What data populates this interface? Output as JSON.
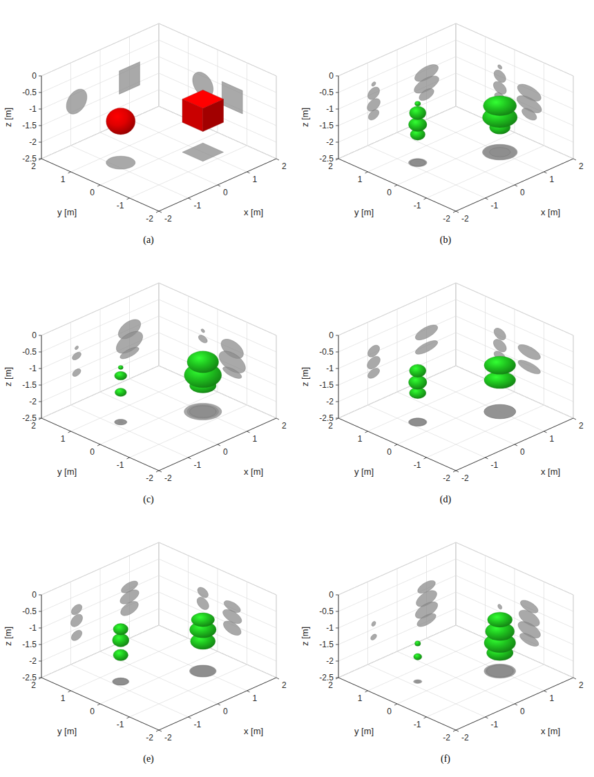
{
  "chart_data": [
    {
      "type": "isosurface",
      "title": "(a)",
      "xlabel": "x [m]",
      "ylabel": "y [m]",
      "zlabel": "z [m]",
      "xlim": [
        -2,
        2
      ],
      "ylim": [
        -2,
        2
      ],
      "zlim": [
        -2.5,
        0
      ],
      "xticks": [
        -2,
        -1,
        0,
        1,
        2
      ],
      "yticks": [
        -2,
        -1,
        0,
        1,
        2
      ],
      "zticks": [
        -2.5,
        -2,
        -1.5,
        -1,
        -0.5,
        0
      ],
      "grid": true,
      "series": [
        {
          "marker": "sphere",
          "color": "#e00000",
          "x": [
            -0.8
          ],
          "y": [
            0.5
          ],
          "z": [
            -1.25
          ],
          "rx": [
            0.35
          ],
          "ry": [
            0.35
          ],
          "rz": [
            0.35
          ]
        },
        {
          "marker": "cube",
          "color": "#e00000",
          "x": [
            1
          ],
          "y": [
            -0.5
          ],
          "z": [
            -1.25
          ],
          "rx": [
            0.35
          ],
          "ry": [
            0.35
          ],
          "rz": [
            0.35
          ]
        }
      ]
    },
    {
      "type": "isosurface",
      "title": "(b)",
      "xlabel": "x [m]",
      "ylabel": "y [m]",
      "zlabel": "z [m]",
      "xlim": [
        -2,
        2
      ],
      "ylim": [
        -2,
        2
      ],
      "zlim": [
        -2.5,
        0
      ],
      "xticks": [
        -2,
        -1,
        0,
        1,
        2
      ],
      "yticks": [
        -2,
        -1,
        0,
        1,
        2
      ],
      "zticks": [
        -2.5,
        -2,
        -1.5,
        -1,
        -0.5,
        0
      ],
      "grid": true,
      "series": [
        {
          "marker": "ellipsoid",
          "color": "#1fc41f",
          "x": [
            -0.8,
            -0.8,
            -0.8,
            -0.8,
            1,
            1,
            1
          ],
          "y": [
            0.5,
            0.5,
            0.5,
            0.5,
            -0.5,
            -0.5,
            -0.5
          ],
          "z": [
            -0.72,
            -1.0,
            -1.35,
            -1.65,
            -1.1,
            -1.45,
            -1.75
          ],
          "rx": [
            0.07,
            0.2,
            0.22,
            0.18,
            0.4,
            0.42,
            0.25
          ],
          "ry": [
            0.07,
            0.2,
            0.22,
            0.18,
            0.4,
            0.42,
            0.25
          ],
          "rz": [
            0.06,
            0.17,
            0.17,
            0.14,
            0.2,
            0.2,
            0.15
          ]
        }
      ]
    },
    {
      "type": "isosurface",
      "title": "(c)",
      "xlabel": "x [m]",
      "ylabel": "y [m]",
      "zlabel": "z [m]",
      "xlim": [
        -2,
        2
      ],
      "ylim": [
        -2,
        2
      ],
      "zlim": [
        -2.5,
        0
      ],
      "xticks": [
        -2,
        -1,
        0,
        1,
        2
      ],
      "yticks": [
        -2,
        -1,
        0,
        1,
        2
      ],
      "zticks": [
        -2.5,
        -2,
        -1.5,
        -1,
        -0.5,
        0
      ],
      "grid": true,
      "series": [
        {
          "marker": "ellipsoid",
          "color": "#1fc41f",
          "x": [
            -0.8,
            -0.8,
            -0.8,
            1,
            1,
            1
          ],
          "y": [
            0.5,
            0.5,
            0.5,
            -0.5,
            -0.5,
            -0.5
          ],
          "z": [
            -0.85,
            -1.1,
            -1.6,
            -1.0,
            -1.4,
            -1.72
          ],
          "rx": [
            0.06,
            0.15,
            0.14,
            0.38,
            0.45,
            0.32
          ],
          "ry": [
            0.06,
            0.15,
            0.14,
            0.38,
            0.45,
            0.32
          ],
          "rz": [
            0.05,
            0.1,
            0.1,
            0.25,
            0.28,
            0.12
          ]
        }
      ]
    },
    {
      "type": "isosurface",
      "title": "(d)",
      "xlabel": "x [m]",
      "ylabel": "y [m]",
      "zlabel": "z [m]",
      "xlim": [
        -2,
        2
      ],
      "ylim": [
        -2,
        2
      ],
      "zlim": [
        -2.5,
        0
      ],
      "xticks": [
        -2,
        -1,
        0,
        1,
        2
      ],
      "yticks": [
        -2,
        -1,
        0,
        1,
        2
      ],
      "zticks": [
        -2.5,
        -2,
        -1.5,
        -1,
        -0.5,
        0
      ],
      "grid": true,
      "series": [
        {
          "marker": "ellipsoid",
          "color": "#1fc41f",
          "x": [
            -0.8,
            -0.8,
            -0.8,
            1,
            1
          ],
          "y": [
            0.5,
            0.5,
            0.5,
            -0.5,
            -0.5
          ],
          "z": [
            -0.95,
            -1.3,
            -1.62,
            -1.1,
            -1.55
          ],
          "rx": [
            0.2,
            0.22,
            0.2,
            0.38,
            0.38
          ],
          "ry": [
            0.2,
            0.22,
            0.2,
            0.38,
            0.38
          ],
          "rz": [
            0.16,
            0.17,
            0.13,
            0.17,
            0.14
          ]
        }
      ]
    },
    {
      "type": "isosurface",
      "title": "(e)",
      "xlabel": "x [m]",
      "ylabel": "y [m]",
      "zlabel": "z [m]",
      "xlim": [
        -2,
        2
      ],
      "ylim": [
        -2,
        2
      ],
      "zlim": [
        -2.5,
        0
      ],
      "xticks": [
        -2,
        -1,
        0,
        1,
        2
      ],
      "yticks": [
        -2,
        -1,
        0,
        1,
        2
      ],
      "zticks": [
        -2.5,
        -2,
        -1.5,
        -1,
        -0.5,
        0
      ],
      "grid": true,
      "series": [
        {
          "marker": "ellipsoid",
          "color": "#1fc41f",
          "x": [
            -0.8,
            -0.8,
            -0.8,
            1,
            1,
            1
          ],
          "y": [
            0.5,
            0.5,
            0.5,
            -0.5,
            -0.5,
            -0.5
          ],
          "z": [
            -0.92,
            -1.25,
            -1.7,
            -0.95,
            -1.25,
            -1.6
          ],
          "rx": [
            0.18,
            0.2,
            0.18,
            0.28,
            0.32,
            0.3
          ],
          "ry": [
            0.18,
            0.2,
            0.18,
            0.28,
            0.32,
            0.3
          ],
          "rz": [
            0.14,
            0.17,
            0.14,
            0.14,
            0.17,
            0.18
          ]
        }
      ]
    },
    {
      "type": "isosurface",
      "title": "(f)",
      "xlabel": "x [m]",
      "ylabel": "y [m]",
      "zlabel": "z [m]",
      "xlim": [
        -2,
        2
      ],
      "ylim": [
        -2,
        2
      ],
      "zlim": [
        -2.5,
        0
      ],
      "xticks": [
        -2,
        -1,
        0,
        1,
        2
      ],
      "yticks": [
        -2,
        -1,
        0,
        1,
        2
      ],
      "zticks": [
        -2.5,
        -2,
        -1.5,
        -1,
        -0.5,
        0
      ],
      "grid": true,
      "series": [
        {
          "marker": "ellipsoid",
          "color": "#1fc41f",
          "x": [
            -0.8,
            -0.8,
            1,
            1,
            1,
            1
          ],
          "y": [
            0.5,
            0.5,
            -0.5,
            -0.5,
            -0.5,
            -0.5
          ],
          "z": [
            -1.35,
            -1.75,
            -0.95,
            -1.3,
            -1.65,
            -1.95
          ],
          "rx": [
            0.07,
            0.1,
            0.3,
            0.35,
            0.38,
            0.32
          ],
          "ry": [
            0.07,
            0.1,
            0.3,
            0.35,
            0.38,
            0.32
          ],
          "rz": [
            0.07,
            0.08,
            0.15,
            0.2,
            0.2,
            0.15
          ]
        }
      ]
    }
  ]
}
